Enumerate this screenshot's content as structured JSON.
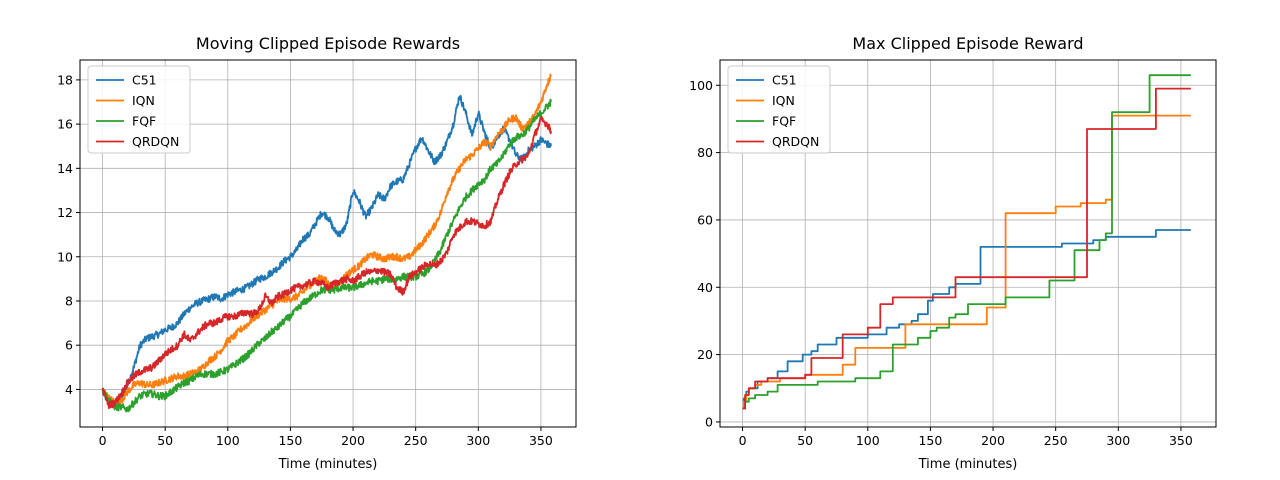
{
  "colors": {
    "C51": "#1f77b4",
    "IQN": "#ff7f0e",
    "FQF": "#2ca02c",
    "QRDQN": "#d62728"
  },
  "chart_data": [
    {
      "type": "line",
      "title": "Moving Clipped Episode Rewards",
      "xlabel": "Time (minutes)",
      "ylabel": "",
      "xlim": [
        -18,
        378
      ],
      "ylim": [
        2.3,
        18.9
      ],
      "xticks": [
        0,
        50,
        100,
        150,
        200,
        250,
        300,
        350
      ],
      "yticks": [
        4,
        6,
        8,
        10,
        12,
        14,
        16,
        18
      ],
      "grid": true,
      "legend": "top-left",
      "noisy": true,
      "series": [
        {
          "name": "C51",
          "color": "#1f77b4",
          "x": [
            0,
            5,
            10,
            15,
            20,
            25,
            30,
            35,
            40,
            45,
            50,
            55,
            60,
            65,
            70,
            75,
            80,
            85,
            90,
            95,
            100,
            105,
            110,
            115,
            120,
            125,
            130,
            135,
            140,
            145,
            150,
            155,
            160,
            165,
            170,
            175,
            180,
            185,
            190,
            195,
            200,
            205,
            210,
            215,
            220,
            225,
            230,
            235,
            240,
            245,
            250,
            255,
            260,
            265,
            270,
            275,
            280,
            285,
            290,
            295,
            300,
            305,
            310,
            315,
            320,
            325,
            330,
            335,
            340,
            345,
            350,
            355,
            358
          ],
          "y": [
            3.9,
            3.4,
            3.3,
            3.6,
            4.2,
            5.0,
            6.0,
            6.3,
            6.4,
            6.5,
            6.7,
            6.8,
            7.0,
            7.4,
            7.7,
            7.9,
            8.0,
            8.1,
            8.2,
            8.1,
            8.3,
            8.4,
            8.5,
            8.6,
            8.8,
            9.0,
            9.1,
            9.3,
            9.5,
            9.8,
            10.0,
            10.3,
            10.8,
            11.0,
            11.5,
            12.0,
            11.8,
            11.2,
            11.0,
            11.5,
            13.0,
            12.5,
            11.8,
            12.2,
            12.8,
            12.6,
            13.2,
            13.4,
            13.5,
            14.2,
            14.9,
            15.4,
            14.8,
            14.3,
            14.6,
            15.2,
            16.0,
            17.3,
            16.5,
            15.5,
            16.5,
            15.6,
            14.9,
            15.4,
            15.8,
            15.3,
            14.6,
            14.4,
            14.8,
            15.0,
            15.3,
            15.1,
            15.0
          ]
        },
        {
          "name": "IQN",
          "color": "#ff7f0e",
          "x": [
            0,
            5,
            10,
            15,
            20,
            25,
            30,
            35,
            40,
            45,
            50,
            55,
            60,
            65,
            70,
            75,
            80,
            85,
            90,
            95,
            100,
            105,
            110,
            115,
            120,
            125,
            130,
            135,
            140,
            145,
            150,
            155,
            160,
            165,
            170,
            175,
            180,
            185,
            190,
            195,
            200,
            205,
            210,
            215,
            220,
            225,
            230,
            235,
            240,
            245,
            250,
            255,
            260,
            265,
            270,
            275,
            280,
            285,
            290,
            295,
            300,
            305,
            310,
            315,
            320,
            325,
            330,
            335,
            340,
            345,
            350,
            355,
            358
          ],
          "y": [
            4.0,
            3.6,
            3.4,
            3.5,
            3.9,
            4.2,
            4.3,
            4.2,
            4.2,
            4.3,
            4.4,
            4.5,
            4.6,
            4.6,
            4.7,
            4.8,
            5.0,
            5.3,
            5.5,
            5.8,
            6.2,
            6.4,
            6.7,
            6.9,
            7.2,
            7.4,
            7.6,
            7.8,
            8.0,
            8.1,
            8.1,
            8.2,
            8.4,
            8.7,
            8.9,
            9.1,
            8.8,
            8.6,
            8.9,
            9.2,
            9.4,
            9.6,
            9.9,
            10.1,
            10.0,
            9.9,
            10.0,
            10.0,
            9.9,
            10.0,
            10.3,
            10.6,
            11.0,
            11.4,
            12.0,
            12.9,
            13.5,
            14.0,
            14.4,
            14.6,
            14.9,
            15.2,
            15.0,
            15.5,
            15.8,
            16.2,
            16.3,
            15.8,
            16.0,
            16.4,
            17.0,
            17.8,
            18.2
          ]
        },
        {
          "name": "FQF",
          "color": "#2ca02c",
          "x": [
            0,
            5,
            10,
            15,
            20,
            25,
            30,
            35,
            40,
            45,
            50,
            55,
            60,
            65,
            70,
            75,
            80,
            85,
            90,
            95,
            100,
            105,
            110,
            115,
            120,
            125,
            130,
            135,
            140,
            145,
            150,
            155,
            160,
            165,
            170,
            175,
            180,
            185,
            190,
            195,
            200,
            205,
            210,
            215,
            220,
            225,
            230,
            235,
            240,
            245,
            250,
            255,
            260,
            265,
            270,
            275,
            280,
            285,
            290,
            295,
            300,
            305,
            310,
            315,
            320,
            325,
            330,
            335,
            340,
            345,
            350,
            355,
            358
          ],
          "y": [
            4.0,
            3.5,
            3.2,
            3.2,
            3.1,
            3.4,
            3.7,
            3.8,
            3.8,
            3.7,
            3.7,
            3.9,
            4.1,
            4.3,
            4.4,
            4.6,
            4.7,
            4.7,
            4.7,
            4.8,
            4.9,
            5.1,
            5.3,
            5.5,
            5.8,
            6.1,
            6.3,
            6.6,
            6.8,
            7.1,
            7.3,
            7.6,
            7.9,
            8.1,
            8.3,
            8.5,
            8.5,
            8.5,
            8.6,
            8.6,
            8.6,
            8.7,
            8.8,
            8.9,
            8.9,
            9.0,
            9.0,
            9.0,
            9.1,
            9.1,
            9.1,
            9.2,
            9.4,
            9.8,
            10.3,
            11.0,
            11.6,
            12.2,
            12.7,
            13.0,
            13.3,
            13.5,
            14.0,
            14.2,
            14.6,
            15.1,
            15.4,
            15.5,
            15.8,
            16.2,
            16.5,
            16.8,
            17.0
          ]
        },
        {
          "name": "QRDQN",
          "color": "#d62728",
          "x": [
            0,
            5,
            10,
            15,
            20,
            25,
            30,
            35,
            40,
            45,
            50,
            55,
            60,
            65,
            70,
            75,
            80,
            85,
            90,
            95,
            100,
            105,
            110,
            115,
            120,
            125,
            130,
            135,
            140,
            145,
            150,
            155,
            160,
            165,
            170,
            175,
            180,
            185,
            190,
            195,
            200,
            205,
            210,
            215,
            220,
            225,
            230,
            235,
            240,
            245,
            250,
            255,
            260,
            265,
            270,
            275,
            280,
            285,
            290,
            295,
            300,
            305,
            310,
            315,
            320,
            325,
            330,
            335,
            340,
            345,
            350,
            355,
            358
          ],
          "y": [
            4.0,
            3.3,
            3.4,
            3.8,
            4.3,
            4.6,
            4.8,
            4.9,
            5.0,
            5.3,
            5.6,
            5.8,
            6.0,
            6.5,
            6.2,
            6.5,
            6.8,
            7.0,
            7.0,
            7.2,
            7.3,
            7.3,
            7.4,
            7.5,
            7.4,
            7.6,
            8.2,
            7.9,
            8.2,
            8.3,
            8.5,
            8.6,
            8.7,
            8.8,
            8.9,
            8.8,
            8.6,
            8.8,
            8.9,
            9.0,
            8.9,
            9.1,
            9.3,
            9.3,
            9.4,
            9.3,
            9.2,
            8.6,
            8.4,
            9.1,
            9.3,
            9.5,
            9.7,
            9.6,
            9.8,
            10.2,
            11.0,
            11.3,
            11.6,
            11.6,
            11.5,
            11.4,
            11.6,
            12.5,
            13.2,
            13.8,
            14.2,
            14.4,
            14.6,
            15.5,
            16.2,
            16.0,
            15.7
          ]
        }
      ]
    },
    {
      "type": "line",
      "title": "Max Clipped Episode Reward",
      "xlabel": "Time (minutes)",
      "ylabel": "",
      "xlim": [
        -18,
        378
      ],
      "ylim": [
        -1.5,
        107.5
      ],
      "xticks": [
        0,
        50,
        100,
        150,
        200,
        250,
        300,
        350
      ],
      "yticks": [
        0,
        20,
        40,
        60,
        80,
        100
      ],
      "grid": true,
      "legend": "top-left",
      "step": true,
      "series": [
        {
          "name": "C51",
          "color": "#1f77b4",
          "x": [
            0,
            1,
            3,
            5,
            12,
            20,
            28,
            36,
            48,
            55,
            60,
            75,
            90,
            100,
            110,
            115,
            125,
            135,
            140,
            148,
            152,
            165,
            170,
            180,
            190,
            195,
            240,
            255,
            280,
            290,
            300,
            320,
            330,
            358
          ],
          "y": [
            4,
            7,
            9,
            10,
            12,
            13,
            15,
            18,
            20,
            21,
            23,
            25,
            25,
            26,
            26,
            28,
            29,
            30,
            32,
            36,
            38,
            40,
            41,
            41,
            52,
            52,
            52,
            53,
            54,
            55,
            55,
            55,
            57,
            57
          ]
        },
        {
          "name": "IQN",
          "color": "#ff7f0e",
          "x": [
            0,
            1,
            3,
            5,
            10,
            15,
            30,
            50,
            55,
            60,
            65,
            80,
            90,
            100,
            110,
            120,
            130,
            150,
            170,
            190,
            195,
            210,
            220,
            240,
            250,
            260,
            270,
            290,
            295,
            300,
            358
          ],
          "y": [
            4,
            6,
            8,
            10,
            11,
            12,
            13,
            14,
            14,
            14,
            14,
            17,
            22,
            22,
            22,
            22,
            29,
            29,
            29,
            29,
            34,
            62,
            62,
            62,
            64,
            64,
            65,
            66,
            91,
            91,
            91
          ]
        },
        {
          "name": "FQF",
          "color": "#2ca02c",
          "x": [
            0,
            2,
            5,
            10,
            20,
            28,
            40,
            55,
            60,
            80,
            90,
            100,
            110,
            120,
            140,
            150,
            155,
            165,
            170,
            180,
            195,
            210,
            230,
            245,
            255,
            265,
            280,
            285,
            290,
            295,
            320,
            325,
            358
          ],
          "y": [
            4,
            6,
            7,
            8,
            9,
            11,
            11,
            11,
            12,
            12,
            13,
            13,
            15,
            23,
            25,
            27,
            28,
            31,
            32,
            35,
            35,
            37,
            37,
            42,
            42,
            51,
            51,
            54,
            56,
            92,
            92,
            103,
            103
          ]
        },
        {
          "name": "QRDQN",
          "color": "#d62728",
          "x": [
            0,
            2,
            5,
            10,
            20,
            30,
            40,
            50,
            55,
            60,
            70,
            80,
            85,
            90,
            95,
            100,
            110,
            120,
            130,
            140,
            150,
            160,
            170,
            190,
            210,
            230,
            250,
            260,
            270,
            275,
            290,
            300,
            320,
            330,
            358
          ],
          "y": [
            4,
            8,
            10,
            12,
            13,
            13,
            13,
            14,
            19,
            19,
            19,
            26,
            26,
            26,
            26,
            28,
            35,
            37,
            37,
            37,
            37,
            37,
            43,
            43,
            43,
            43,
            43,
            43,
            43,
            87,
            87,
            87,
            87,
            99,
            99
          ]
        }
      ]
    }
  ]
}
